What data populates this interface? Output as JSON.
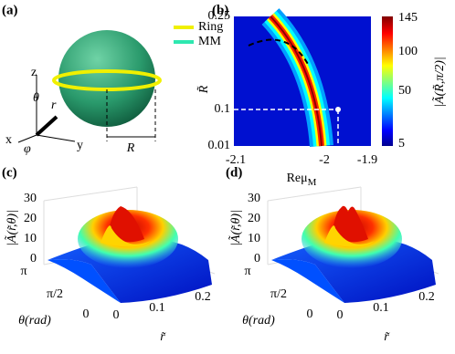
{
  "panels": [
    {
      "label": "(a)",
      "legend": [
        "Ring",
        "MM"
      ],
      "axes": [
        "z",
        "y",
        "x"
      ],
      "symbols": [
        "θ",
        "r",
        "φ",
        "R"
      ]
    },
    {
      "label": "(b)",
      "xlabel": {
        "main": "Reμ",
        "sub": "M"
      },
      "ylabel": "R̃",
      "xticks": [
        -2.1,
        -2,
        -1.9
      ],
      "yticks": [
        0.25,
        0.1,
        0.01
      ],
      "colorbar_label": "|Ã(R̃,π/2)|",
      "colorbar_ticks": [
        145,
        100,
        50,
        5
      ]
    },
    {
      "label": "(c)",
      "zlabel": "|Ã(r̃,θ)|",
      "zticks": [
        30,
        20,
        10,
        0
      ],
      "ylabel": "θ(rad)",
      "yticks": [
        "π",
        "π/2",
        "0"
      ],
      "xlabel": "r̃",
      "xticks": [
        0,
        0.1,
        0.2
      ]
    },
    {
      "label": "(d)",
      "zlabel": "|Ã(r̃,θ)|",
      "zticks": [
        30,
        20,
        10,
        0
      ],
      "ylabel": "θ(rad)",
      "yticks": [
        "π",
        "π/2",
        "0"
      ],
      "xlabel": "r̃",
      "xticks": [
        0,
        0.1,
        0.2
      ]
    }
  ]
}
